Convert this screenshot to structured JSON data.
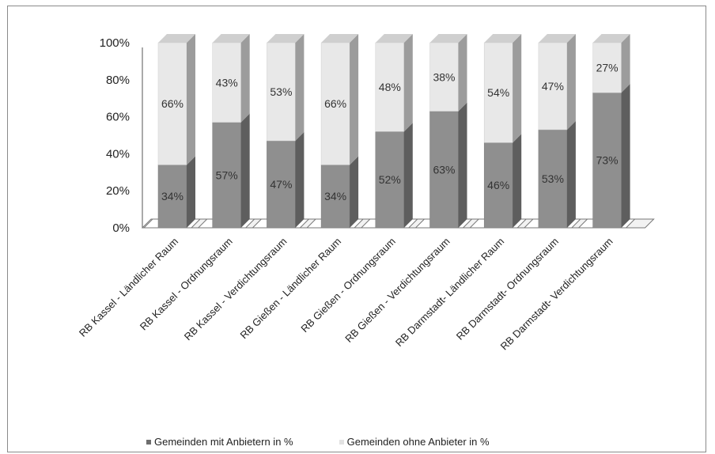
{
  "chart_data": {
    "type": "bar",
    "stacked": true,
    "three_d": true,
    "categories": [
      "RB Kassel - Ländlicher Raum",
      "RB Kassel - Ordnungsraum",
      "RB Kassel - Verdichtungsraum",
      "RB Gießen - Ländlicher Raum",
      "RB Gießen - Ordnungsraum",
      "RB Gießen - Verdichtungsraum",
      "RB Darmstadt- Ländlicher Raum",
      "RB Darmstadt- Ordnungsraum",
      "RB Darmstadt- Verdichtungsraum"
    ],
    "series": [
      {
        "name": "Gemeinden mit Anbietern in %",
        "values": [
          34,
          57,
          47,
          34,
          52,
          63,
          46,
          53,
          73
        ],
        "labels": [
          "34%",
          "57%",
          "47%",
          "34%",
          "52%",
          "63%",
          "46%",
          "53%",
          "73%"
        ],
        "color": "#8c8c8c"
      },
      {
        "name": "Gemeinden ohne Anbieter in %",
        "values": [
          66,
          43,
          53,
          66,
          48,
          38,
          54,
          47,
          27
        ],
        "labels": [
          "66%",
          "43%",
          "53%",
          "66%",
          "48%",
          "38%",
          "54%",
          "47%",
          "27%"
        ],
        "color": "#e6e6e6"
      }
    ],
    "yticks": [
      "0%",
      "20%",
      "40%",
      "60%",
      "80%",
      "100%"
    ],
    "ylim": [
      0,
      100
    ],
    "legend_position": "bottom",
    "grid": false
  }
}
